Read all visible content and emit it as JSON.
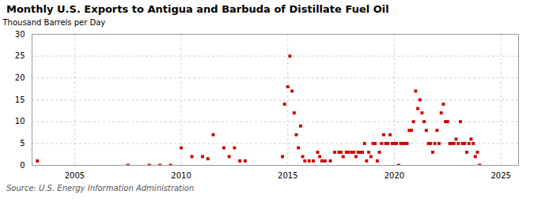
{
  "chart_data": {
    "type": "scatter",
    "title": "Monthly U.S. Exports to Antigua and Barbuda of Distillate Fuel Oil",
    "ylabel": "Thousand Barrels per Day",
    "source": "Source: U.S. Energy Information Administration",
    "color": "#cc0000",
    "marker": "square",
    "grid": true,
    "xlim": [
      2003.0,
      2025.83
    ],
    "ylim": [
      0,
      30
    ],
    "xticks": [
      2005,
      2010,
      2015,
      2020,
      2025
    ],
    "yticks": [
      0,
      5,
      10,
      15,
      20,
      25,
      30
    ],
    "x": [
      2003.25,
      2007.5,
      2008.5,
      2009.0,
      2009.5,
      2010.0,
      2010.5,
      2011.0,
      2011.25,
      2011.5,
      2012.0,
      2012.25,
      2012.5,
      2012.75,
      2013.0,
      2014.75,
      2014.85,
      2015.0,
      2015.1,
      2015.2,
      2015.3,
      2015.4,
      2015.5,
      2015.6,
      2015.7,
      2015.8,
      2016.0,
      2016.2,
      2016.4,
      2016.5,
      2016.6,
      2016.75,
      2017.0,
      2017.2,
      2017.4,
      2017.5,
      2017.6,
      2017.75,
      2017.85,
      2018.0,
      2018.1,
      2018.2,
      2018.3,
      2018.4,
      2018.5,
      2018.6,
      2018.7,
      2018.8,
      2018.9,
      2019.0,
      2019.1,
      2019.2,
      2019.3,
      2019.4,
      2019.5,
      2019.6,
      2019.7,
      2019.8,
      2019.9,
      2020.0,
      2020.1,
      2020.2,
      2020.3,
      2020.4,
      2020.5,
      2020.6,
      2020.7,
      2020.8,
      2020.9,
      2021.0,
      2021.1,
      2021.2,
      2021.3,
      2021.4,
      2021.5,
      2021.6,
      2021.7,
      2021.8,
      2021.9,
      2022.0,
      2022.1,
      2022.2,
      2022.3,
      2022.4,
      2022.5,
      2022.6,
      2022.7,
      2022.8,
      2022.9,
      2023.0,
      2023.1,
      2023.2,
      2023.3,
      2023.4,
      2023.5,
      2023.6,
      2023.7,
      2023.8,
      2023.9,
      2024.0
    ],
    "values": [
      1.0,
      0.0,
      0.0,
      0.0,
      0.0,
      4.0,
      2.0,
      2.0,
      1.5,
      7.0,
      4.0,
      2.0,
      4.0,
      1.0,
      1.0,
      2.0,
      14.0,
      18.0,
      25.0,
      17.0,
      12.0,
      7.0,
      4.0,
      9.0,
      2.0,
      1.0,
      1.0,
      1.0,
      3.0,
      2.0,
      1.0,
      1.0,
      1.0,
      3.0,
      3.0,
      3.0,
      2.0,
      3.0,
      3.0,
      3.0,
      3.0,
      2.0,
      3.0,
      3.0,
      3.0,
      5.0,
      1.0,
      3.0,
      2.0,
      5.0,
      5.0,
      1.0,
      3.0,
      5.0,
      7.0,
      5.0,
      5.0,
      7.0,
      5.0,
      5.0,
      5.0,
      0.0,
      5.0,
      5.0,
      5.0,
      5.0,
      8.0,
      8.0,
      10.0,
      17.0,
      13.0,
      15.0,
      12.0,
      10.0,
      8.0,
      5.0,
      5.0,
      3.0,
      5.0,
      8.0,
      5.0,
      12.0,
      14.0,
      10.0,
      10.0,
      5.0,
      5.0,
      5.0,
      6.0,
      5.0,
      10.0,
      5.0,
      5.0,
      3.0,
      5.0,
      6.0,
      5.0,
      2.0,
      3.0,
      0.0
    ]
  }
}
